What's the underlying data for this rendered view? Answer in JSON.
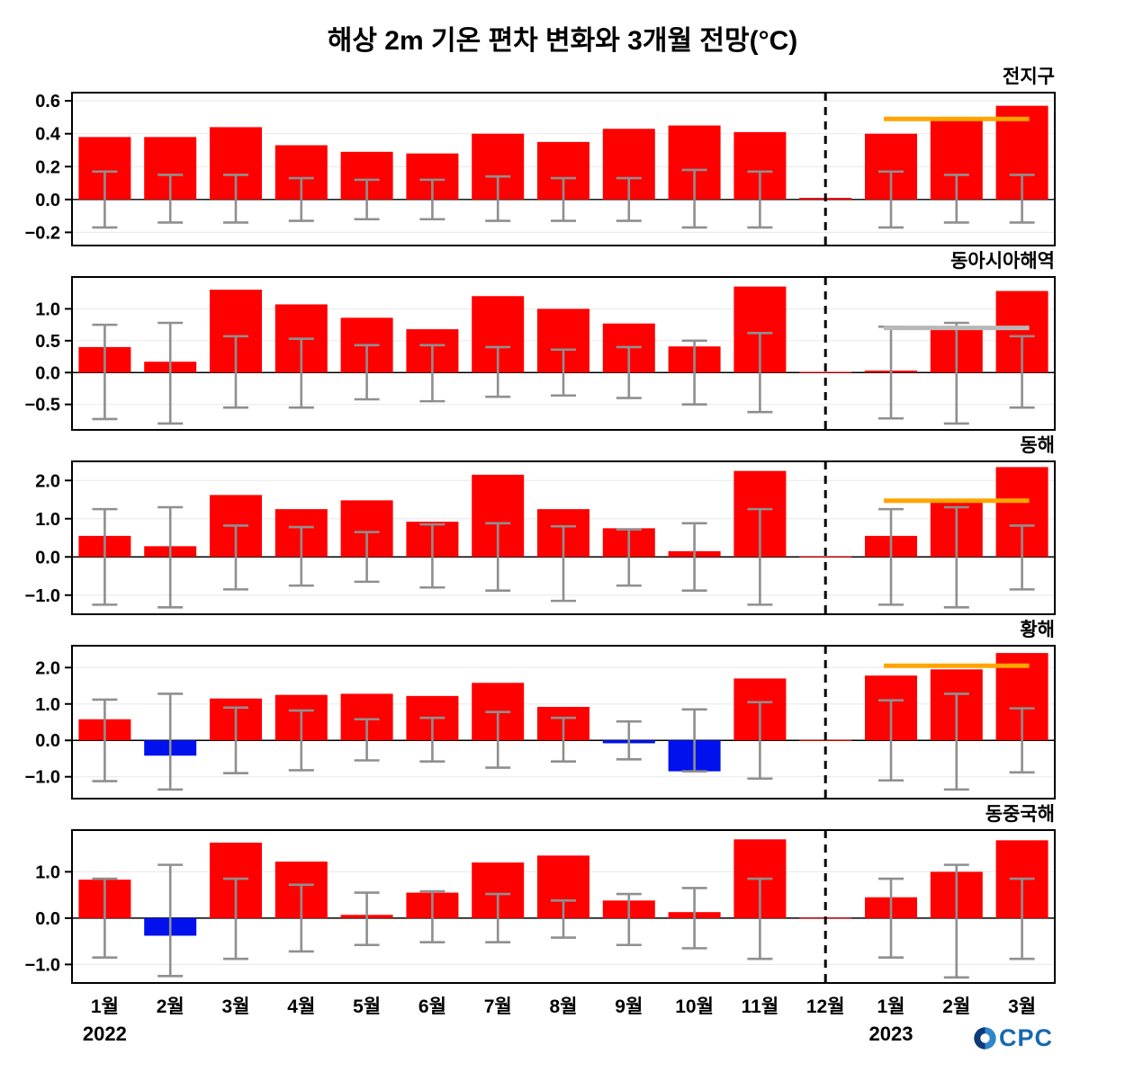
{
  "logo": {
    "text": "CPC",
    "symbol": "O"
  },
  "chart_data": {
    "type": "bar",
    "title": "해상 2m 기온 편차 변화와 3개월 전망(°C)",
    "months": [
      "1월",
      "2월",
      "3월",
      "4월",
      "5월",
      "6월",
      "7월",
      "8월",
      "9월",
      "10월",
      "11월",
      "12월",
      "1월",
      "2월",
      "3월"
    ],
    "year_labels": [
      {
        "text": "2022",
        "month_index": 0
      },
      {
        "text": "2023",
        "month_index": 12
      }
    ],
    "divider_month_index": 11,
    "forecast_month_indices": [
      12,
      13,
      14
    ],
    "colors": {
      "positive": "#ff0000",
      "negative": "#0011ee",
      "error_bar": "#8f8f8f",
      "forecast_default": "#ffa500",
      "grid": "#ebebeb"
    },
    "panels": [
      {
        "label": "전지구",
        "ylim": [
          -0.28,
          0.65
        ],
        "ticks": [
          0.6,
          0.4,
          0.2,
          0.0,
          -0.2
        ],
        "values": [
          0.38,
          0.38,
          0.44,
          0.33,
          0.29,
          0.28,
          0.4,
          0.35,
          0.43,
          0.45,
          0.41,
          0.01,
          0.4,
          0.5,
          0.57
        ],
        "err_hi": [
          0.17,
          0.15,
          0.15,
          0.13,
          0.12,
          0.12,
          0.14,
          0.13,
          0.13,
          0.18,
          0.17,
          null,
          0.17,
          0.15,
          0.15
        ],
        "err_lo": [
          -0.17,
          -0.14,
          -0.14,
          -0.13,
          -0.12,
          -0.12,
          -0.13,
          -0.13,
          -0.13,
          -0.17,
          -0.17,
          null,
          -0.17,
          -0.14,
          -0.14
        ],
        "forecast": {
          "value": 0.49,
          "color": "#ffa500"
        }
      },
      {
        "label": "동아시아해역",
        "ylim": [
          -0.9,
          1.5
        ],
        "ticks": [
          1.0,
          0.5,
          0.0,
          -0.5
        ],
        "values": [
          0.4,
          0.17,
          1.3,
          1.07,
          0.86,
          0.68,
          1.2,
          1.0,
          0.77,
          0.41,
          1.35,
          0.01,
          0.03,
          0.68,
          1.28
        ],
        "err_hi": [
          0.75,
          0.78,
          0.57,
          0.53,
          0.43,
          0.43,
          0.4,
          0.36,
          0.4,
          0.5,
          0.62,
          null,
          0.72,
          0.78,
          0.57
        ],
        "err_lo": [
          -0.73,
          -0.8,
          -0.55,
          -0.55,
          -0.42,
          -0.45,
          -0.38,
          -0.36,
          -0.4,
          -0.5,
          -0.62,
          null,
          -0.72,
          -0.8,
          -0.55
        ],
        "forecast": {
          "value": 0.7,
          "color": "#b8b8b8"
        }
      },
      {
        "label": "동해",
        "ylim": [
          -1.5,
          2.5
        ],
        "ticks": [
          2.0,
          1.0,
          0.0,
          -1.0
        ],
        "values": [
          0.55,
          0.28,
          1.62,
          1.25,
          1.48,
          0.92,
          2.15,
          1.25,
          0.75,
          0.15,
          2.25,
          0.01,
          0.55,
          1.45,
          2.35
        ],
        "err_hi": [
          1.25,
          1.3,
          0.82,
          0.78,
          0.65,
          0.85,
          0.88,
          0.8,
          0.72,
          0.88,
          1.25,
          null,
          1.25,
          1.3,
          0.82
        ],
        "err_lo": [
          -1.25,
          -1.32,
          -0.85,
          -0.75,
          -0.65,
          -0.8,
          -0.88,
          -1.15,
          -0.75,
          -0.88,
          -1.25,
          null,
          -1.25,
          -1.32,
          -0.85
        ],
        "forecast": {
          "value": 1.47,
          "color": "#ffa500"
        }
      },
      {
        "label": "황해",
        "ylim": [
          -1.6,
          2.6
        ],
        "ticks": [
          2.0,
          1.0,
          0.0,
          -1.0
        ],
        "values": [
          0.58,
          -0.42,
          1.15,
          1.25,
          1.28,
          1.22,
          1.58,
          0.92,
          -0.08,
          -0.85,
          1.7,
          0.01,
          1.78,
          1.95,
          2.4
        ],
        "err_hi": [
          1.12,
          1.28,
          0.9,
          0.82,
          0.58,
          0.62,
          0.78,
          0.62,
          0.52,
          0.85,
          1.05,
          null,
          1.1,
          1.28,
          0.88
        ],
        "err_lo": [
          -1.12,
          -1.35,
          -0.9,
          -0.82,
          -0.55,
          -0.58,
          -0.75,
          -0.58,
          -0.52,
          -0.85,
          -1.05,
          null,
          -1.1,
          -1.35,
          -0.88
        ],
        "forecast": {
          "value": 2.05,
          "color": "#ffa500"
        }
      },
      {
        "label": "동중국해",
        "ylim": [
          -1.4,
          1.9
        ],
        "ticks": [
          1.0,
          0.0,
          -1.0
        ],
        "values": [
          0.83,
          -0.38,
          1.63,
          1.22,
          0.07,
          0.55,
          1.2,
          1.35,
          0.38,
          0.13,
          1.7,
          0.01,
          0.45,
          1.0,
          1.68
        ],
        "err_hi": [
          0.85,
          1.15,
          0.85,
          0.72,
          0.55,
          0.58,
          0.52,
          0.38,
          0.52,
          0.65,
          0.85,
          null,
          0.85,
          1.15,
          0.85
        ],
        "err_lo": [
          -0.85,
          -1.25,
          -0.88,
          -0.72,
          -0.58,
          -0.52,
          -0.52,
          -0.42,
          -0.58,
          -0.65,
          -0.88,
          null,
          -0.85,
          -1.28,
          -0.88
        ]
      }
    ]
  }
}
